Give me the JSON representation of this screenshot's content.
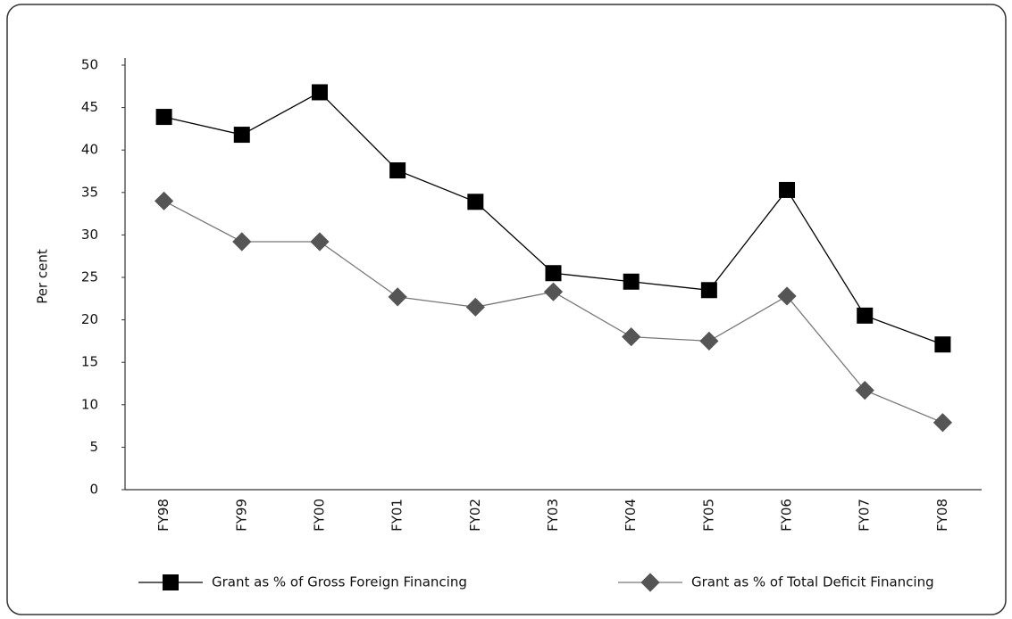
{
  "chart_data": {
    "type": "line",
    "y_label": "Per cent",
    "categories": [
      "FY98",
      "FY99",
      "FY00",
      "FY01",
      "FY02",
      "FY03",
      "FY04",
      "FY05",
      "FY06",
      "FY07",
      "FY08"
    ],
    "series": [
      {
        "name": "Grant as % of Gross Foreign Financing",
        "color": "#000000",
        "marker": "square",
        "values": [
          43.9,
          41.8,
          46.8,
          37.6,
          33.9,
          25.5,
          24.5,
          23.5,
          35.3,
          20.5,
          17.1
        ]
      },
      {
        "name": "Grant as % of Total Deficit Financing",
        "color": "#555555",
        "marker": "diamond",
        "values": [
          34.0,
          29.2,
          29.2,
          22.7,
          21.5,
          23.3,
          18.0,
          17.5,
          22.8,
          11.7,
          7.9
        ]
      }
    ],
    "ylim": [
      0,
      50
    ],
    "yticks": [
      0,
      5,
      10,
      15,
      20,
      25,
      30,
      35,
      40,
      45,
      50
    ],
    "grid": false,
    "legend": "bottom"
  }
}
